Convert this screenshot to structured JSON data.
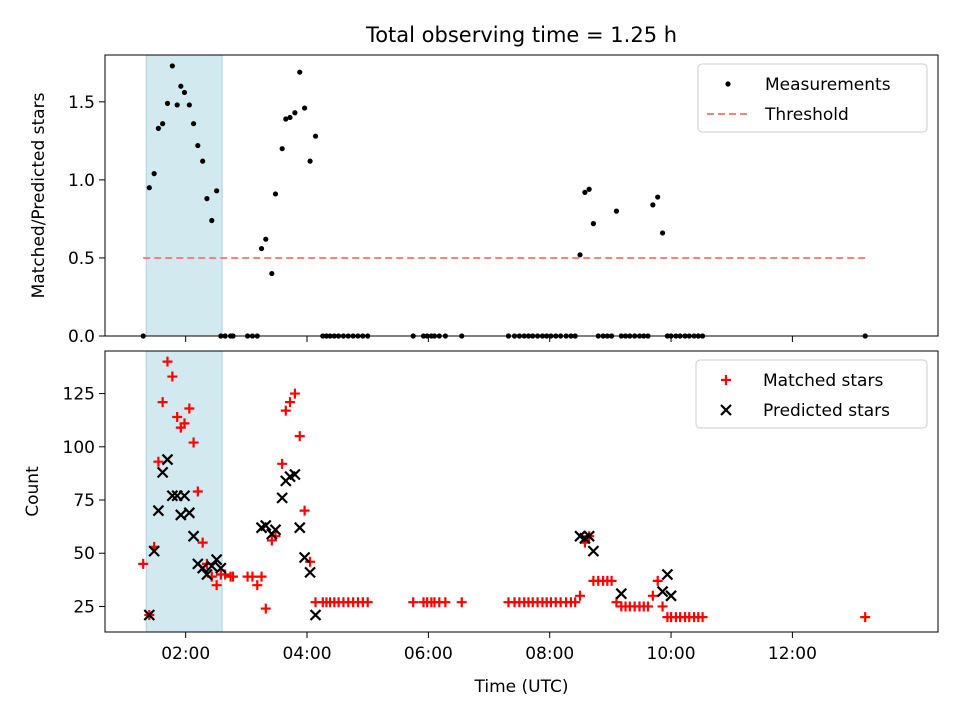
{
  "title": "Total observing time = 1.25 h",
  "colors": {
    "measurements": "#000000",
    "threshold": "#ff7f7f",
    "matched": "#ff0000",
    "predicted": "#000000",
    "highlight": "#d3e9f0"
  },
  "chart_data": [
    {
      "type": "scatter",
      "panel": "top",
      "title": "Total observing time = 1.25 h",
      "xlabel": "",
      "ylabel": "Matched/Predicted stars",
      "xlim_hours": [
        0.67,
        14.4
      ],
      "ylim": [
        0,
        1.8
      ],
      "xticks": [
        {
          "v": 2,
          "label": "02:00"
        },
        {
          "v": 4,
          "label": "04:00"
        },
        {
          "v": 6,
          "label": "06:00"
        },
        {
          "v": 8,
          "label": "08:00"
        },
        {
          "v": 10,
          "label": "10:00"
        },
        {
          "v": 12,
          "label": "12:00"
        }
      ],
      "yticks": [
        {
          "v": 0,
          "label": "0.0"
        },
        {
          "v": 0.5,
          "label": "0.5"
        },
        {
          "v": 1.0,
          "label": "1.0"
        },
        {
          "v": 1.5,
          "label": "1.5"
        }
      ],
      "highlight_span_hours": [
        1.35,
        2.6
      ],
      "legend_position": "top-right",
      "grid": false,
      "series": [
        {
          "name": "Measurements",
          "marker": "dot",
          "x": [
            1.3,
            1.4,
            1.48,
            1.55,
            1.62,
            1.7,
            1.78,
            1.86,
            1.92,
            1.98,
            2.06,
            2.13,
            2.2,
            2.28,
            2.35,
            2.43,
            2.51,
            2.58,
            2.65,
            2.74,
            2.78,
            3.02,
            3.1,
            3.18,
            3.25,
            3.32,
            3.42,
            3.48,
            3.59,
            3.65,
            3.72,
            3.8,
            3.88,
            3.96,
            4.05,
            4.14,
            4.26,
            4.32,
            4.38,
            4.45,
            4.52,
            4.6,
            4.68,
            4.76,
            4.84,
            4.92,
            5.0,
            5.75,
            5.92,
            5.98,
            6.05,
            6.1,
            6.18,
            6.28,
            6.55,
            7.32,
            7.42,
            7.5,
            7.58,
            7.65,
            7.72,
            7.8,
            7.88,
            7.95,
            8.02,
            8.1,
            8.18,
            8.27,
            8.35,
            8.42,
            8.5,
            8.58,
            8.65,
            8.72,
            8.8,
            8.88,
            8.95,
            9.02,
            9.1,
            9.18,
            9.25,
            9.32,
            9.4,
            9.48,
            9.55,
            9.62,
            9.7,
            9.78,
            9.86,
            9.94,
            10.0,
            10.08,
            10.15,
            10.23,
            10.3,
            10.38,
            10.45,
            10.52,
            13.2
          ],
          "y": [
            0.0,
            0.95,
            1.04,
            1.33,
            1.36,
            1.49,
            1.73,
            1.48,
            1.6,
            1.56,
            1.48,
            1.36,
            1.22,
            1.12,
            0.88,
            0.74,
            0.93,
            0.0,
            0.0,
            0.0,
            0.0,
            0.0,
            0.0,
            0.0,
            0.56,
            0.62,
            0.4,
            0.91,
            1.2,
            1.39,
            1.4,
            1.43,
            1.69,
            1.46,
            1.12,
            1.28,
            0.0,
            0.0,
            0.0,
            0.0,
            0.0,
            0.0,
            0.0,
            0.0,
            0.0,
            0.0,
            0.0,
            0.0,
            0.0,
            0.0,
            0.0,
            0.0,
            0.0,
            0.0,
            0.0,
            0.0,
            0.0,
            0.0,
            0.0,
            0.0,
            0.0,
            0.0,
            0.0,
            0.0,
            0.0,
            0.0,
            0.0,
            0.0,
            0.0,
            0.0,
            0.52,
            0.92,
            0.94,
            0.72,
            0.0,
            0.0,
            0.0,
            0.0,
            0.8,
            0.0,
            0.0,
            0.0,
            0.0,
            0.0,
            0.0,
            0.0,
            0.84,
            0.89,
            0.66,
            0.0,
            0.0,
            0.0,
            0.0,
            0.0,
            0.0,
            0.0,
            0.0,
            0.0,
            0.0
          ]
        },
        {
          "name": "Threshold",
          "style": "dashed-line",
          "x": [
            1.3,
            13.2
          ],
          "y": [
            0.5,
            0.5
          ]
        }
      ]
    },
    {
      "type": "scatter",
      "panel": "bottom",
      "title": "",
      "xlabel": "Time (UTC)",
      "ylabel": "Count",
      "xlim_hours": [
        0.67,
        14.4
      ],
      "ylim": [
        13,
        145
      ],
      "xticks": [
        {
          "v": 2,
          "label": "02:00"
        },
        {
          "v": 4,
          "label": "04:00"
        },
        {
          "v": 6,
          "label": "06:00"
        },
        {
          "v": 8,
          "label": "08:00"
        },
        {
          "v": 10,
          "label": "10:00"
        },
        {
          "v": 12,
          "label": "12:00"
        }
      ],
      "yticks": [
        {
          "v": 25,
          "label": "25"
        },
        {
          "v": 50,
          "label": "50"
        },
        {
          "v": 75,
          "label": "75"
        },
        {
          "v": 100,
          "label": "100"
        },
        {
          "v": 125,
          "label": "125"
        }
      ],
      "highlight_span_hours": [
        1.35,
        2.6
      ],
      "legend_position": "top-right",
      "grid": false,
      "series": [
        {
          "name": "Matched stars",
          "marker": "plus",
          "x": [
            1.3,
            1.4,
            1.48,
            1.55,
            1.62,
            1.7,
            1.78,
            1.86,
            1.92,
            1.98,
            2.06,
            2.13,
            2.2,
            2.28,
            2.35,
            2.43,
            2.51,
            2.58,
            2.65,
            2.74,
            2.78,
            3.02,
            3.1,
            3.18,
            3.25,
            3.32,
            3.42,
            3.48,
            3.59,
            3.65,
            3.72,
            3.8,
            3.88,
            3.96,
            4.05,
            4.14,
            4.26,
            4.32,
            4.38,
            4.45,
            4.52,
            4.6,
            4.68,
            4.76,
            4.84,
            4.92,
            5.0,
            5.75,
            5.92,
            5.98,
            6.05,
            6.1,
            6.18,
            6.28,
            6.55,
            7.32,
            7.42,
            7.5,
            7.58,
            7.65,
            7.72,
            7.8,
            7.88,
            7.95,
            8.02,
            8.1,
            8.18,
            8.27,
            8.35,
            8.42,
            8.5,
            8.58,
            8.65,
            8.72,
            8.8,
            8.88,
            8.95,
            9.02,
            9.1,
            9.18,
            9.25,
            9.32,
            9.4,
            9.48,
            9.55,
            9.62,
            9.7,
            9.78,
            9.86,
            9.94,
            10.0,
            10.08,
            10.15,
            10.23,
            10.3,
            10.38,
            10.45,
            10.52,
            13.2
          ],
          "y": [
            45,
            21,
            53,
            93,
            121,
            140,
            133,
            114,
            109,
            111,
            118,
            102,
            79,
            55,
            45,
            39,
            35,
            40,
            40,
            39,
            39,
            39,
            39,
            35,
            39,
            24,
            56,
            58,
            92,
            117,
            121,
            125,
            105,
            70,
            46,
            27,
            27,
            27,
            27,
            27,
            27,
            27,
            27,
            27,
            27,
            27,
            27,
            27,
            27,
            27,
            27,
            27,
            27,
            27,
            27,
            27,
            27,
            27,
            27,
            27,
            27,
            27,
            27,
            27,
            27,
            27,
            27,
            27,
            27,
            27,
            30,
            55,
            58,
            37,
            37,
            37,
            37,
            37,
            27,
            25,
            25,
            25,
            25,
            25,
            25,
            25,
            30,
            37,
            25,
            20,
            20,
            20,
            20,
            20,
            20,
            20,
            20,
            20,
            20
          ]
        },
        {
          "name": "Predicted stars",
          "marker": "x",
          "x": [
            1.4,
            1.48,
            1.55,
            1.62,
            1.7,
            1.78,
            1.86,
            1.92,
            1.98,
            2.06,
            2.13,
            2.2,
            2.28,
            2.35,
            2.43,
            2.51,
            2.58,
            3.25,
            3.32,
            3.42,
            3.48,
            3.59,
            3.65,
            3.72,
            3.8,
            3.88,
            3.96,
            4.05,
            4.14,
            8.5,
            8.58,
            8.65,
            8.72,
            9.18,
            9.86,
            9.94,
            10.0
          ],
          "y": [
            21,
            51,
            70,
            88,
            94,
            77,
            77,
            68,
            77,
            69,
            58,
            45,
            43,
            40,
            44,
            47,
            43,
            62,
            63,
            59,
            61,
            76,
            84,
            86,
            87,
            62,
            48,
            41,
            21,
            58,
            57,
            58,
            51,
            31,
            32,
            40,
            30
          ]
        }
      ]
    }
  ]
}
